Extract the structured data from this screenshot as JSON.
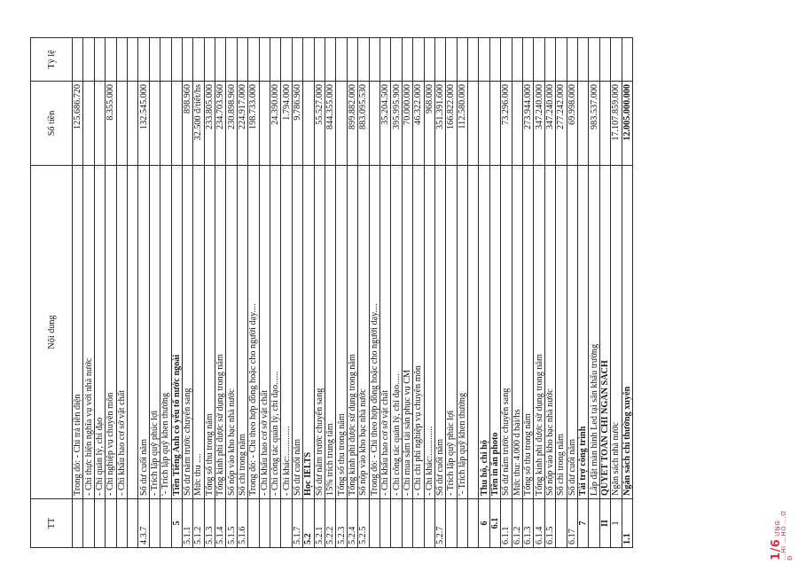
{
  "table": {
    "headers": {
      "tt": "TT",
      "noi_dung": "Nội dung",
      "so_tien": "Số tiền",
      "ty_le": "Tỷ lệ"
    },
    "rows": [
      {
        "tt": "",
        "text": "Trong đó:  - Chi trả tiền điện",
        "amount": "125.686.720"
      },
      {
        "tt": "",
        "text": "- Chi thực hiện nghĩa vụ với nhà nước",
        "amount": ""
      },
      {
        "tt": "",
        "text": "- Chi quản lý, chỉ đạo",
        "amount": ""
      },
      {
        "tt": "",
        "text": "- Chi nghiệp vụ chuyên môn",
        "amount": "8.355.000"
      },
      {
        "tt": "",
        "text": "- Chi khấu hao cơ sở vật chất",
        "amount": ""
      },
      {
        "tt": "",
        "text": "",
        "amount": ""
      },
      {
        "tt": "4.3.7",
        "text": "Số dư cuối năm",
        "amount": "132.545.000"
      },
      {
        "tt": "",
        "text": "- Trích lập quỹ phúc lợi",
        "amount": ""
      },
      {
        "tt": "",
        "text": "'- Trích lập quỹ khen thưởng",
        "amount": ""
      },
      {
        "tt": "5",
        "text": "Tiền Tiếng Anh có yếu tố nước ngoài",
        "amount": ""
      },
      {
        "tt": "5.1.1",
        "text": "Số dư năm trước chuyển sang",
        "amount": "898.960"
      },
      {
        "tt": "5.1.2",
        "text": "Mức thu ....",
        "amount": "32.500 đ/tiết/hs"
      },
      {
        "tt": "5.1.3",
        "text": "Tổng số thu trong năm",
        "amount": "233.805.000"
      },
      {
        "tt": "5.1.4",
        "text": "Tổng kinh phí được sử dụng trong năm",
        "amount": "234.703.960"
      },
      {
        "tt": "5.1.5",
        "text": "Số nộp vào kho bạc nhà nước",
        "amount": "230.898.960"
      },
      {
        "tt": "5.1.6",
        "text": "Số chi trong năm",
        "amount": "224.917.000"
      },
      {
        "tt": "",
        "text": "Trong đó: - Chi theo hợp đồng hoặc cho người dạy....",
        "amount": "198.733.000"
      },
      {
        "tt": "",
        "text": "- Chi khấu hao cơ sở vật chất",
        "amount": ""
      },
      {
        "tt": "",
        "text": "- Chi công tác quản lý, chỉ đạo......",
        "amount": "24.390.000"
      },
      {
        "tt": "",
        "text": "- Chi khác:.............",
        "amount": "1.794.000"
      },
      {
        "tt": "5.1.7",
        "text": "Số dư cuối năm",
        "amount": "9.786.960"
      },
      {
        "tt": "5.2",
        "text": "Học IELTS",
        "amount": ""
      },
      {
        "tt": "5.2.1",
        "text": "Số dư năm trước chuyển sang",
        "amount": "55.527.000"
      },
      {
        "tt": "5.2.2",
        "text": "15% trích trung tâm",
        "amount": "844.355.000"
      },
      {
        "tt": "5.2.3",
        "text": "Tổng số thu trong năm",
        "amount": ""
      },
      {
        "tt": "5.2.4",
        "text": "Tổng kinh phí được sử dụng trong năm",
        "amount": "899.882.000"
      },
      {
        "tt": "5.2.5",
        "text": "Số nộp vào kho bạc nhà nước",
        "amount": "883.095.530"
      },
      {
        "tt": "",
        "text": "Trong đó: - Chi theo hợp đồng hoặc cho người dạy....",
        "amount": ""
      },
      {
        "tt": "",
        "text": "- Chi khấu hao cơ sở vật chất",
        "amount": "35.204.500"
      },
      {
        "tt": "",
        "text": "- Chi công tác quản lý, chỉ đạo.....",
        "amount": "395.995.900"
      },
      {
        "tt": "",
        "text": "- Chi mua sắm tài sản phục vụ CM",
        "amount": "70.000.000"
      },
      {
        "tt": "",
        "text": "- Chi chi phí nghiệp vụ chuyên môn",
        "amount": "46.322.000"
      },
      {
        "tt": "",
        "text": "- Chi khác:.............",
        "amount": "968.000"
      },
      {
        "tt": "5.2.7",
        "text": "Số dư cuối năm",
        "amount": "351.391.600"
      },
      {
        "tt": "",
        "text": "- Trích lập quỹ phúc lợi",
        "amount": "166.822.000"
      },
      {
        "tt": "",
        "text": "'- Trích lập quỹ khen thưởng",
        "amount": "112.580.000"
      },
      {
        "tt": "",
        "text": "",
        "amount": ""
      },
      {
        "tt": "6",
        "text": "Thu hộ, chi hộ",
        "amount": ""
      },
      {
        "tt": "6.1",
        "text": "Tiền in ấn photo",
        "amount": ""
      },
      {
        "tt": "6.1.1",
        "text": "Số dư năm trước chuyển sang",
        "amount": "73.296.000"
      },
      {
        "tt": "6.1.2",
        "text": "Mức thu: 4.000 đ bài/hs",
        "amount": ""
      },
      {
        "tt": "6.1.3",
        "text": "Tổng số thu trong năm",
        "amount": "273.944.000"
      },
      {
        "tt": "6.1.4",
        "text": "Tổng kinh phí được sử dụng trong năm",
        "amount": "347.240.000"
      },
      {
        "tt": "6.1.5",
        "text": "Số nộp vào kho bạc nhà nước",
        "amount": "347.240.000"
      },
      {
        "tt": "",
        "text": "Số chi trong năm",
        "amount": "277.242.000"
      },
      {
        "tt": "6.17",
        "text": "Số dư cuối năm",
        "amount": "69.998.000"
      },
      {
        "tt": "7",
        "text": "Tài trợ công trình",
        "amount": ""
      },
      {
        "tt": "",
        "text": "Lắp đặt màn hình Led tại sân khấu trường",
        "amount": "983.537.000"
      },
      {
        "tt": "II",
        "text": "QUYẾT TOÁN CHI NGÂN SÁCH",
        "amount": ""
      },
      {
        "tt": "1",
        "text": "Ngân sách nhà nước",
        "amount": "17.107.859.000"
      },
      {
        "tt": "1.1",
        "text": "Ngân sách chi thường xuyên",
        "amount": "12.005.000.000"
      }
    ]
  },
  "stamp": {
    "text": "ƯNG ...HI ...HỒ ...Ờ Đ",
    "mark": "1/6"
  }
}
